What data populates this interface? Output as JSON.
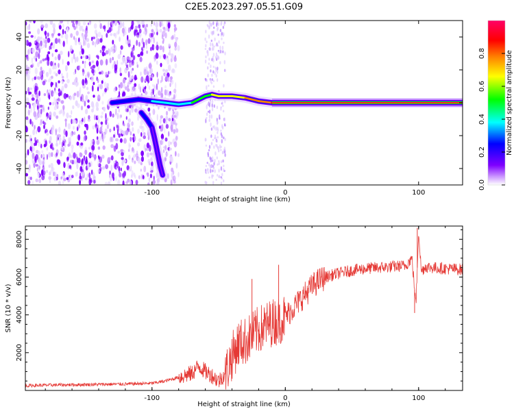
{
  "title": "C2E5.2023.297.05.51.G09",
  "colors": {
    "spectrogram_background": "#ffffff",
    "signal_line": "#e53935",
    "axis": "#000000"
  },
  "colormap": [
    "#ffffff",
    "#cc99ff",
    "#7f00ff",
    "#0000ff",
    "#00ffff",
    "#00ff00",
    "#ffff00",
    "#ff8000",
    "#ff0000",
    "#ff00ff"
  ],
  "chart_data": [
    {
      "type": "heatmap",
      "name": "spectrogram",
      "xlabel": "Height of straight line (km)",
      "ylabel": "Frequency (Hz)",
      "xlim": [
        -195,
        133
      ],
      "ylim": [
        -50,
        50
      ],
      "xticks": [
        -100,
        0,
        100
      ],
      "xtick_labels": [
        "-100",
        "0",
        "100"
      ],
      "yticks": [
        -40,
        -20,
        0,
        20,
        40
      ],
      "ytick_labels": [
        "-40",
        "-20",
        "0",
        "20",
        "40"
      ],
      "colorbar": {
        "label": "Normalized spectral amplitude",
        "range": [
          0,
          1
        ],
        "ticks": [
          0.0,
          0.2,
          0.4,
          0.6,
          0.8
        ],
        "tick_labels": [
          "0.0",
          "0.2",
          "0.4",
          "0.6",
          "0.8"
        ]
      },
      "main_trace": {
        "x": [
          -130,
          -120,
          -110,
          -100,
          -90,
          -80,
          -70,
          -60,
          -55,
          -50,
          -40,
          -30,
          -20,
          -10,
          0,
          20,
          50,
          100,
          133
        ],
        "frequency": [
          0,
          1,
          2,
          1,
          0,
          -1,
          0,
          4,
          5,
          4,
          4,
          3,
          1,
          0,
          0,
          0,
          0,
          0,
          0
        ],
        "amplitude": [
          0.3,
          0.3,
          0.35,
          0.4,
          0.45,
          0.5,
          0.5,
          0.6,
          0.65,
          0.7,
          0.75,
          0.8,
          0.85,
          0.9,
          0.92,
          0.95,
          0.95,
          0.95,
          0.95
        ]
      },
      "branch_trace": {
        "x": [
          -108,
          -104,
          -100,
          -98,
          -96,
          -94,
          -92
        ],
        "frequency": [
          -6,
          -10,
          -15,
          -22,
          -30,
          -38,
          -44
        ],
        "amplitude": [
          0.35,
          0.3,
          0.25,
          0.2,
          0.18,
          0.15,
          0.12
        ]
      },
      "noise_region_x": [
        -195,
        -80
      ],
      "secondary_noise_x": [
        -60,
        -45
      ]
    },
    {
      "type": "line",
      "name": "snr",
      "xlabel": "Height of straight line (km)",
      "ylabel": "SNR (10 * v/v)",
      "xlim": [
        -195,
        133
      ],
      "ylim": [
        0,
        8700
      ],
      "xticks": [
        -100,
        0,
        100
      ],
      "xtick_labels": [
        "-100",
        "0",
        "100"
      ],
      "yticks": [
        2000,
        4000,
        6000,
        8000
      ],
      "ytick_labels": [
        "2000",
        "4000",
        "6000",
        "8000"
      ],
      "series": [
        {
          "name": "SNR",
          "x": [
            -195,
            -180,
            -160,
            -140,
            -120,
            -100,
            -90,
            -80,
            -70,
            -65,
            -60,
            -55,
            -50,
            -45,
            -40,
            -35,
            -30,
            -25,
            -20,
            -15,
            -10,
            -5,
            0,
            5,
            10,
            15,
            20,
            25,
            30,
            40,
            50,
            60,
            70,
            80,
            90,
            95,
            98,
            100,
            102,
            105,
            110,
            120,
            133
          ],
          "y": [
            250,
            280,
            300,
            320,
            340,
            380,
            500,
            700,
            900,
            1300,
            1000,
            800,
            500,
            900,
            1800,
            2500,
            2600,
            2900,
            3200,
            3400,
            3600,
            3700,
            3900,
            4300,
            4700,
            5100,
            5500,
            5800,
            6000,
            6200,
            6350,
            6450,
            6500,
            6550,
            6600,
            7000,
            4500,
            8500,
            6300,
            6550,
            6500,
            6450,
            6400
          ]
        }
      ],
      "spikes": [
        {
          "x": -25,
          "y": 5900
        },
        {
          "x": -5,
          "y": 6650
        },
        {
          "x": 97,
          "y": 4100
        },
        {
          "x": 99,
          "y": 8600
        }
      ]
    }
  ]
}
